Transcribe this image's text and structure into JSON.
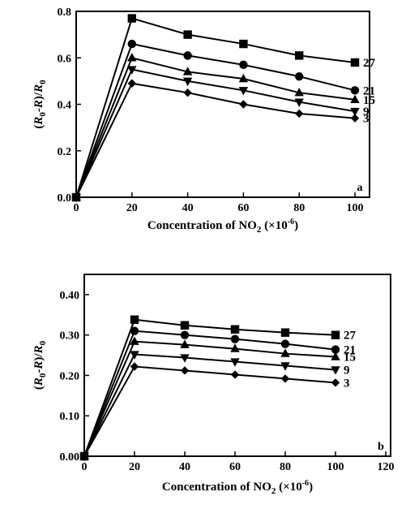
{
  "chart_data": [
    {
      "type": "line",
      "panel_label": "a",
      "xlabel": "Concentration of NO",
      "xlabel_sub": "2",
      "xlabel_unit": " (×10",
      "xlabel_exp": "-6",
      "xlabel_close": ")",
      "ylabel": "(R0-R)/R0",
      "xlim": [
        0,
        100
      ],
      "ylim": [
        0,
        0.8
      ],
      "x_ticks": [
        0,
        20,
        40,
        60,
        80,
        100
      ],
      "x_tick_labels": [
        "0",
        "20",
        "40",
        "60",
        "80",
        "100"
      ],
      "y_ticks": [
        0,
        0.2,
        0.4,
        0.6,
        0.8
      ],
      "y_tick_labels": [
        "0.0",
        "0.2",
        "0.4",
        "0.6",
        "0.8"
      ],
      "x": [
        0,
        20,
        40,
        60,
        80,
        100
      ],
      "series": [
        {
          "name": "27",
          "marker": "square",
          "values": [
            0,
            0.77,
            0.7,
            0.66,
            0.61,
            0.58
          ]
        },
        {
          "name": "21",
          "marker": "circle",
          "values": [
            0,
            0.66,
            0.61,
            0.57,
            0.52,
            0.46
          ]
        },
        {
          "name": "15",
          "marker": "triangle-up",
          "values": [
            0,
            0.6,
            0.54,
            0.51,
            0.45,
            0.42
          ]
        },
        {
          "name": "9",
          "marker": "triangle-down",
          "values": [
            0,
            0.55,
            0.5,
            0.46,
            0.41,
            0.37
          ]
        },
        {
          "name": "3",
          "marker": "diamond",
          "values": [
            0,
            0.49,
            0.45,
            0.4,
            0.36,
            0.34
          ]
        }
      ]
    },
    {
      "type": "line",
      "panel_label": "b",
      "xlabel": "Concentration of NO",
      "xlabel_sub": "2",
      "xlabel_unit": " (×10",
      "xlabel_exp": "-6",
      "xlabel_close": ")",
      "ylabel": "(R0-R)/R0",
      "xlim": [
        0,
        120
      ],
      "ylim": [
        0,
        0.45
      ],
      "x_ticks": [
        0,
        20,
        40,
        60,
        80,
        100,
        120
      ],
      "x_tick_labels": [
        "0",
        "20",
        "40",
        "60",
        "80",
        "100",
        "120"
      ],
      "y_ticks": [
        0,
        0.1,
        0.2,
        0.3,
        0.4
      ],
      "y_tick_labels": [
        "0.00",
        "0.10",
        "0.20",
        "0.30",
        "0.40"
      ],
      "x": [
        0,
        20,
        40,
        60,
        80,
        100
      ],
      "series": [
        {
          "name": "27",
          "marker": "square",
          "values": [
            0,
            0.338,
            0.324,
            0.314,
            0.306,
            0.3
          ]
        },
        {
          "name": "21",
          "marker": "circle",
          "values": [
            0,
            0.31,
            0.3,
            0.29,
            0.278,
            0.264
          ]
        },
        {
          "name": "15",
          "marker": "triangle-up",
          "values": [
            0,
            0.284,
            0.276,
            0.266,
            0.254,
            0.246
          ]
        },
        {
          "name": "9",
          "marker": "triangle-down",
          "values": [
            0,
            0.252,
            0.244,
            0.234,
            0.224,
            0.214
          ]
        },
        {
          "name": "3",
          "marker": "diamond",
          "values": [
            0,
            0.222,
            0.212,
            0.202,
            0.192,
            0.182
          ]
        }
      ]
    }
  ]
}
